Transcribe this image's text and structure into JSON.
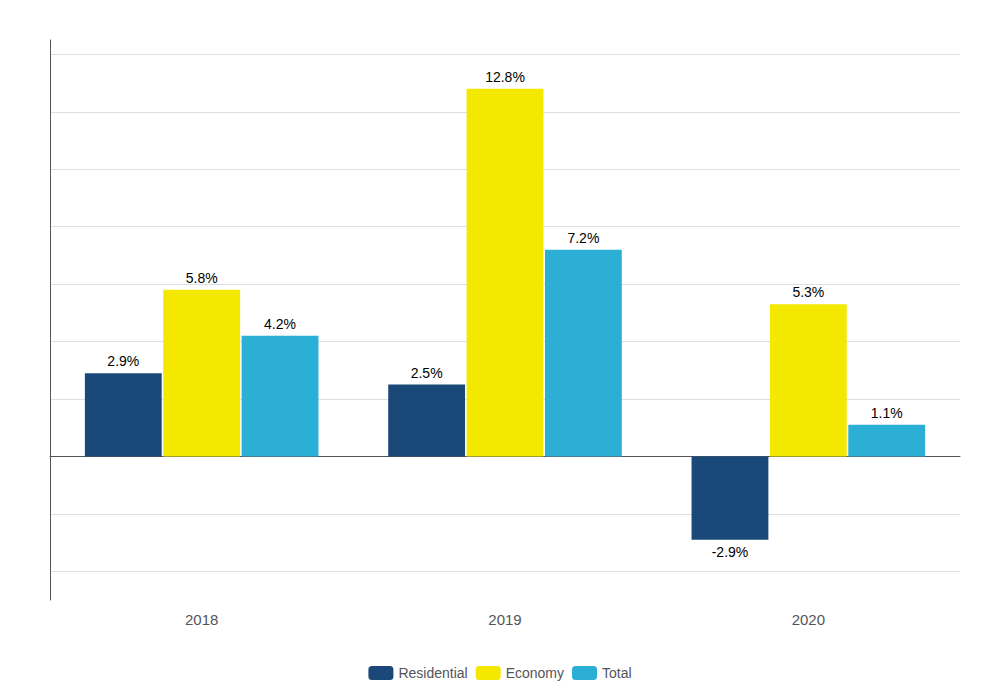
{
  "chart_data": {
    "type": "bar",
    "categories": [
      "2018",
      "2019",
      "2020"
    ],
    "series": [
      {
        "name": "Residential",
        "color": "#1a4878",
        "values": [
          2.9,
          2.5,
          -2.9
        ],
        "value_labels": [
          "2.9%",
          "2.5%",
          "-2.9%"
        ]
      },
      {
        "name": "Economy",
        "color": "#f5e800",
        "values": [
          5.8,
          12.8,
          5.3
        ],
        "value_labels": [
          "5.8%",
          "12.8%",
          "5.3%"
        ]
      },
      {
        "name": "Total",
        "color": "#2bafd4",
        "values": [
          4.2,
          7.2,
          1.1
        ],
        "value_labels": [
          "4.2%",
          "7.2%",
          "1.1%"
        ]
      }
    ],
    "ylim": [
      -5.0,
      14.5
    ],
    "yticks": [
      -4,
      -2,
      0,
      2,
      4,
      6,
      8,
      10,
      12,
      14
    ],
    "grid": true,
    "legend": "bottom",
    "data_labels": true,
    "tick_labels": "x"
  }
}
